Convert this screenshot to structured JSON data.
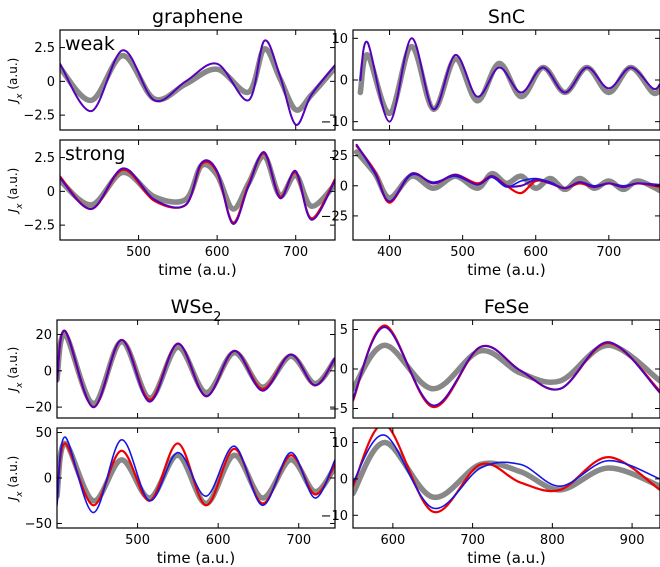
{
  "colors": {
    "reference": "#888888",
    "red": "#ee0000",
    "blue": "#1515e6",
    "purple": "#5500bb"
  },
  "chart_data": [
    {
      "type": "line",
      "panel": "graphene-weak",
      "title": "graphene",
      "note": "weak",
      "xlabel": "",
      "ylabel": "J_x (a.u.)",
      "xlim": [
        400,
        750
      ],
      "ylim": [
        -3.6,
        3.8
      ],
      "xticks": [
        500,
        600,
        700
      ],
      "xticklabels": false,
      "yticks": [
        -2.5,
        0.0,
        2.5
      ],
      "series": [
        {
          "color": "reference",
          "x": [
            400,
            440,
            480,
            520,
            560,
            600,
            640,
            660,
            680,
            700,
            720,
            750
          ],
          "y": [
            1.0,
            -1.4,
            1.9,
            -1.3,
            -0.2,
            0.9,
            -0.8,
            2.4,
            0.2,
            -2.1,
            -1.0,
            1.0
          ]
        },
        {
          "color": "purple",
          "x": [
            400,
            440,
            480,
            520,
            560,
            600,
            640,
            660,
            680,
            700,
            720,
            750
          ],
          "y": [
            1.3,
            -2.2,
            2.3,
            -1.4,
            0.0,
            1.3,
            -1.4,
            3.0,
            0.4,
            -3.2,
            -1.0,
            1.2
          ]
        }
      ]
    },
    {
      "type": "line",
      "panel": "graphene-strong",
      "title": "",
      "note": "strong",
      "xlabel": "time (a.u.)",
      "ylabel": "J_x (a.u.)",
      "xlim": [
        400,
        750
      ],
      "ylim": [
        -3.6,
        3.8
      ],
      "xticks": [
        500,
        600,
        700
      ],
      "xticklabels": true,
      "yticks": [
        -2.5,
        0.0,
        2.5
      ],
      "series": [
        {
          "color": "reference",
          "x": [
            400,
            440,
            480,
            520,
            560,
            580,
            600,
            620,
            640,
            660,
            680,
            700,
            720,
            750
          ],
          "y": [
            0.8,
            -1.0,
            1.4,
            -0.4,
            -0.6,
            1.9,
            1.2,
            -1.3,
            0.6,
            2.6,
            -0.3,
            1.2,
            -1.1,
            0.5
          ]
        },
        {
          "color": "red",
          "x": [
            400,
            440,
            480,
            520,
            560,
            580,
            600,
            620,
            640,
            660,
            680,
            700,
            720,
            750
          ],
          "y": [
            1.1,
            -1.3,
            1.6,
            -0.7,
            -1.0,
            2.0,
            1.4,
            -2.3,
            0.5,
            2.8,
            -0.4,
            1.4,
            -2.0,
            0.9
          ]
        },
        {
          "color": "purple",
          "x": [
            400,
            440,
            480,
            520,
            560,
            580,
            600,
            620,
            640,
            660,
            680,
            700,
            720,
            750
          ],
          "y": [
            1.0,
            -1.3,
            1.7,
            -0.6,
            -1.0,
            2.1,
            1.5,
            -2.4,
            0.4,
            2.9,
            -0.5,
            1.5,
            -2.1,
            0.8
          ]
        }
      ]
    },
    {
      "type": "line",
      "panel": "snc-weak",
      "title": "SnC",
      "note": "",
      "xlabel": "",
      "ylabel": "",
      "xlim": [
        350,
        770
      ],
      "ylim": [
        -12,
        12
      ],
      "xticks": [
        400,
        500,
        600,
        700
      ],
      "xticklabels": false,
      "yticks": [
        -10,
        0,
        10
      ],
      "series": [
        {
          "color": "reference",
          "x": [
            360,
            370,
            400,
            430,
            460,
            490,
            520,
            550,
            580,
            610,
            640,
            670,
            700,
            730,
            760,
            770
          ],
          "y": [
            -3,
            6,
            -8,
            8,
            -7,
            5,
            -5,
            4,
            -4,
            3,
            -3,
            3,
            -3,
            3,
            -3,
            -2
          ]
        },
        {
          "color": "purple",
          "x": [
            360,
            370,
            400,
            430,
            460,
            490,
            520,
            550,
            580,
            610,
            640,
            670,
            700,
            730,
            760,
            770
          ],
          "y": [
            0,
            9,
            -10,
            10,
            -7,
            6,
            -4,
            3,
            -3,
            3,
            -3,
            3,
            -2,
            3,
            -2,
            -1
          ]
        }
      ]
    },
    {
      "type": "line",
      "panel": "snc-strong",
      "title": "",
      "note": "",
      "xlabel": "time (a.u.)",
      "ylabel": "",
      "xlim": [
        350,
        770
      ],
      "ylim": [
        -45,
        38
      ],
      "xticks": [
        400,
        500,
        600,
        700
      ],
      "xticklabels": true,
      "yticks": [
        -25,
        0,
        25
      ],
      "series": [
        {
          "color": "reference",
          "x": [
            355,
            380,
            400,
            430,
            460,
            490,
            520,
            540,
            560,
            580,
            600,
            620,
            640,
            660,
            680,
            700,
            720,
            740,
            770
          ],
          "y": [
            28,
            10,
            -10,
            8,
            -2,
            8,
            -2,
            10,
            2,
            8,
            -2,
            6,
            -3,
            6,
            -2,
            4,
            -3,
            4,
            -4
          ]
        },
        {
          "color": "red",
          "x": [
            355,
            380,
            400,
            430,
            460,
            490,
            520,
            540,
            560,
            580,
            600,
            620,
            640,
            660,
            680,
            700,
            720,
            740,
            770
          ],
          "y": [
            33,
            12,
            -14,
            10,
            2,
            9,
            2,
            8,
            0,
            -6,
            4,
            2,
            -2,
            2,
            -1,
            2,
            -1,
            2,
            -1
          ]
        },
        {
          "color": "blue",
          "x": [
            355,
            380,
            400,
            430,
            460,
            490,
            520,
            540,
            560,
            580,
            600,
            620,
            640,
            660,
            680,
            700,
            720,
            740,
            770
          ],
          "y": [
            34,
            10,
            -13,
            9,
            3,
            8,
            1,
            7,
            -1,
            4,
            6,
            3,
            -2,
            3,
            0,
            2,
            0,
            2,
            1
          ]
        },
        {
          "color": "purple",
          "x": [
            355,
            380,
            400,
            430,
            460,
            490,
            520,
            540,
            560,
            580,
            600,
            620,
            640,
            660,
            680,
            700,
            720,
            740,
            770
          ],
          "y": [
            34,
            11,
            -13,
            10,
            2,
            9,
            1,
            8,
            0,
            0,
            5,
            2,
            -2,
            3,
            -1,
            2,
            -1,
            2,
            0
          ]
        }
      ]
    },
    {
      "type": "line",
      "panel": "wse2-weak",
      "title": "WSe",
      "title_sub": "2",
      "note": "",
      "xlabel": "",
      "ylabel": "J_x (a.u.)",
      "xlim": [
        400,
        745
      ],
      "ylim": [
        -26,
        28
      ],
      "xticks": [
        500,
        600,
        700
      ],
      "xticklabels": false,
      "yticks": [
        -20,
        0,
        20
      ],
      "series": [
        {
          "color": "reference",
          "x": [
            400,
            410,
            445,
            480,
            515,
            550,
            585,
            620,
            655,
            690,
            720,
            745
          ],
          "y": [
            -5,
            20,
            -18,
            16,
            -15,
            13,
            -12,
            10,
            -9,
            8,
            -7,
            6
          ]
        },
        {
          "color": "red",
          "x": [
            400,
            410,
            445,
            480,
            515,
            550,
            585,
            620,
            655,
            690,
            720,
            745
          ],
          "y": [
            -5,
            22,
            -20,
            17,
            -16,
            15,
            -14,
            11,
            -10,
            9,
            -8,
            7
          ]
        },
        {
          "color": "purple",
          "x": [
            400,
            410,
            445,
            480,
            515,
            550,
            585,
            620,
            655,
            690,
            720,
            745
          ],
          "y": [
            -6,
            22,
            -20,
            17,
            -17,
            15,
            -14,
            11,
            -11,
            9,
            -8,
            7
          ]
        }
      ]
    },
    {
      "type": "line",
      "panel": "wse2-strong",
      "title": "",
      "note": "",
      "xlabel": "time (a.u.)",
      "ylabel": "J_x (a.u.)",
      "xlim": [
        400,
        745
      ],
      "ylim": [
        -55,
        55
      ],
      "xticks": [
        500,
        600,
        700
      ],
      "xticklabels": true,
      "yticks": [
        -50,
        0,
        50
      ],
      "series": [
        {
          "color": "reference",
          "x": [
            400,
            410,
            445,
            480,
            515,
            550,
            585,
            620,
            655,
            690,
            720,
            745
          ],
          "y": [
            -20,
            38,
            -25,
            20,
            -22,
            25,
            -28,
            25,
            -22,
            20,
            -15,
            12
          ]
        },
        {
          "color": "red",
          "x": [
            400,
            410,
            445,
            480,
            515,
            550,
            585,
            620,
            655,
            690,
            720,
            745
          ],
          "y": [
            -25,
            38,
            -30,
            30,
            -25,
            38,
            -30,
            32,
            -28,
            25,
            -18,
            15
          ]
        },
        {
          "color": "blue",
          "x": [
            400,
            410,
            445,
            480,
            515,
            550,
            585,
            620,
            655,
            690,
            720,
            745
          ],
          "y": [
            -30,
            45,
            -38,
            42,
            -25,
            28,
            -20,
            35,
            -30,
            28,
            -22,
            20
          ]
        }
      ]
    },
    {
      "type": "line",
      "panel": "fese-weak",
      "title": "FeSe",
      "note": "",
      "xlabel": "",
      "ylabel": "",
      "xlim": [
        550,
        935
      ],
      "ylim": [
        -6.2,
        6.2
      ],
      "xticks": [
        600,
        700,
        800,
        900
      ],
      "xticklabels": false,
      "yticks": [
        -5,
        0,
        5
      ],
      "series": [
        {
          "color": "reference",
          "x": [
            550,
            590,
            650,
            710,
            760,
            810,
            870,
            935
          ],
          "y": [
            -2.5,
            3.0,
            -2.5,
            2.3,
            -0.5,
            -1.5,
            3.0,
            -1.5
          ]
        },
        {
          "color": "red",
          "x": [
            550,
            590,
            650,
            710,
            760,
            810,
            870,
            935
          ],
          "y": [
            -4.0,
            5.5,
            -4.8,
            2.8,
            -0.2,
            -2.5,
            3.3,
            -2.8
          ]
        },
        {
          "color": "purple",
          "x": [
            550,
            590,
            650,
            710,
            760,
            810,
            870,
            935
          ],
          "y": [
            -3.8,
            5.3,
            -4.6,
            2.8,
            -0.2,
            -2.5,
            3.4,
            -3.0
          ]
        }
      ]
    },
    {
      "type": "line",
      "panel": "fese-strong",
      "title": "",
      "note": "",
      "xlabel": "time (a.u.)",
      "ylabel": "",
      "xlim": [
        550,
        935
      ],
      "ylim": [
        -13.5,
        14
      ],
      "xticks": [
        600,
        700,
        800,
        900
      ],
      "xticklabels": true,
      "yticks": [
        -10,
        0,
        10
      ],
      "series": [
        {
          "color": "reference",
          "x": [
            550,
            590,
            650,
            710,
            760,
            810,
            870,
            935
          ],
          "y": [
            -4,
            10,
            -5,
            4,
            2,
            -3,
            3,
            -2
          ]
        },
        {
          "color": "red",
          "x": [
            550,
            590,
            650,
            710,
            760,
            810,
            870,
            935
          ],
          "y": [
            -2,
            15,
            -9,
            4,
            -1,
            -3,
            6,
            -3
          ]
        },
        {
          "color": "blue",
          "x": [
            550,
            590,
            650,
            710,
            760,
            810,
            870,
            935
          ],
          "y": [
            -1,
            12,
            -8,
            3,
            4,
            -2,
            5,
            0
          ]
        }
      ]
    }
  ]
}
